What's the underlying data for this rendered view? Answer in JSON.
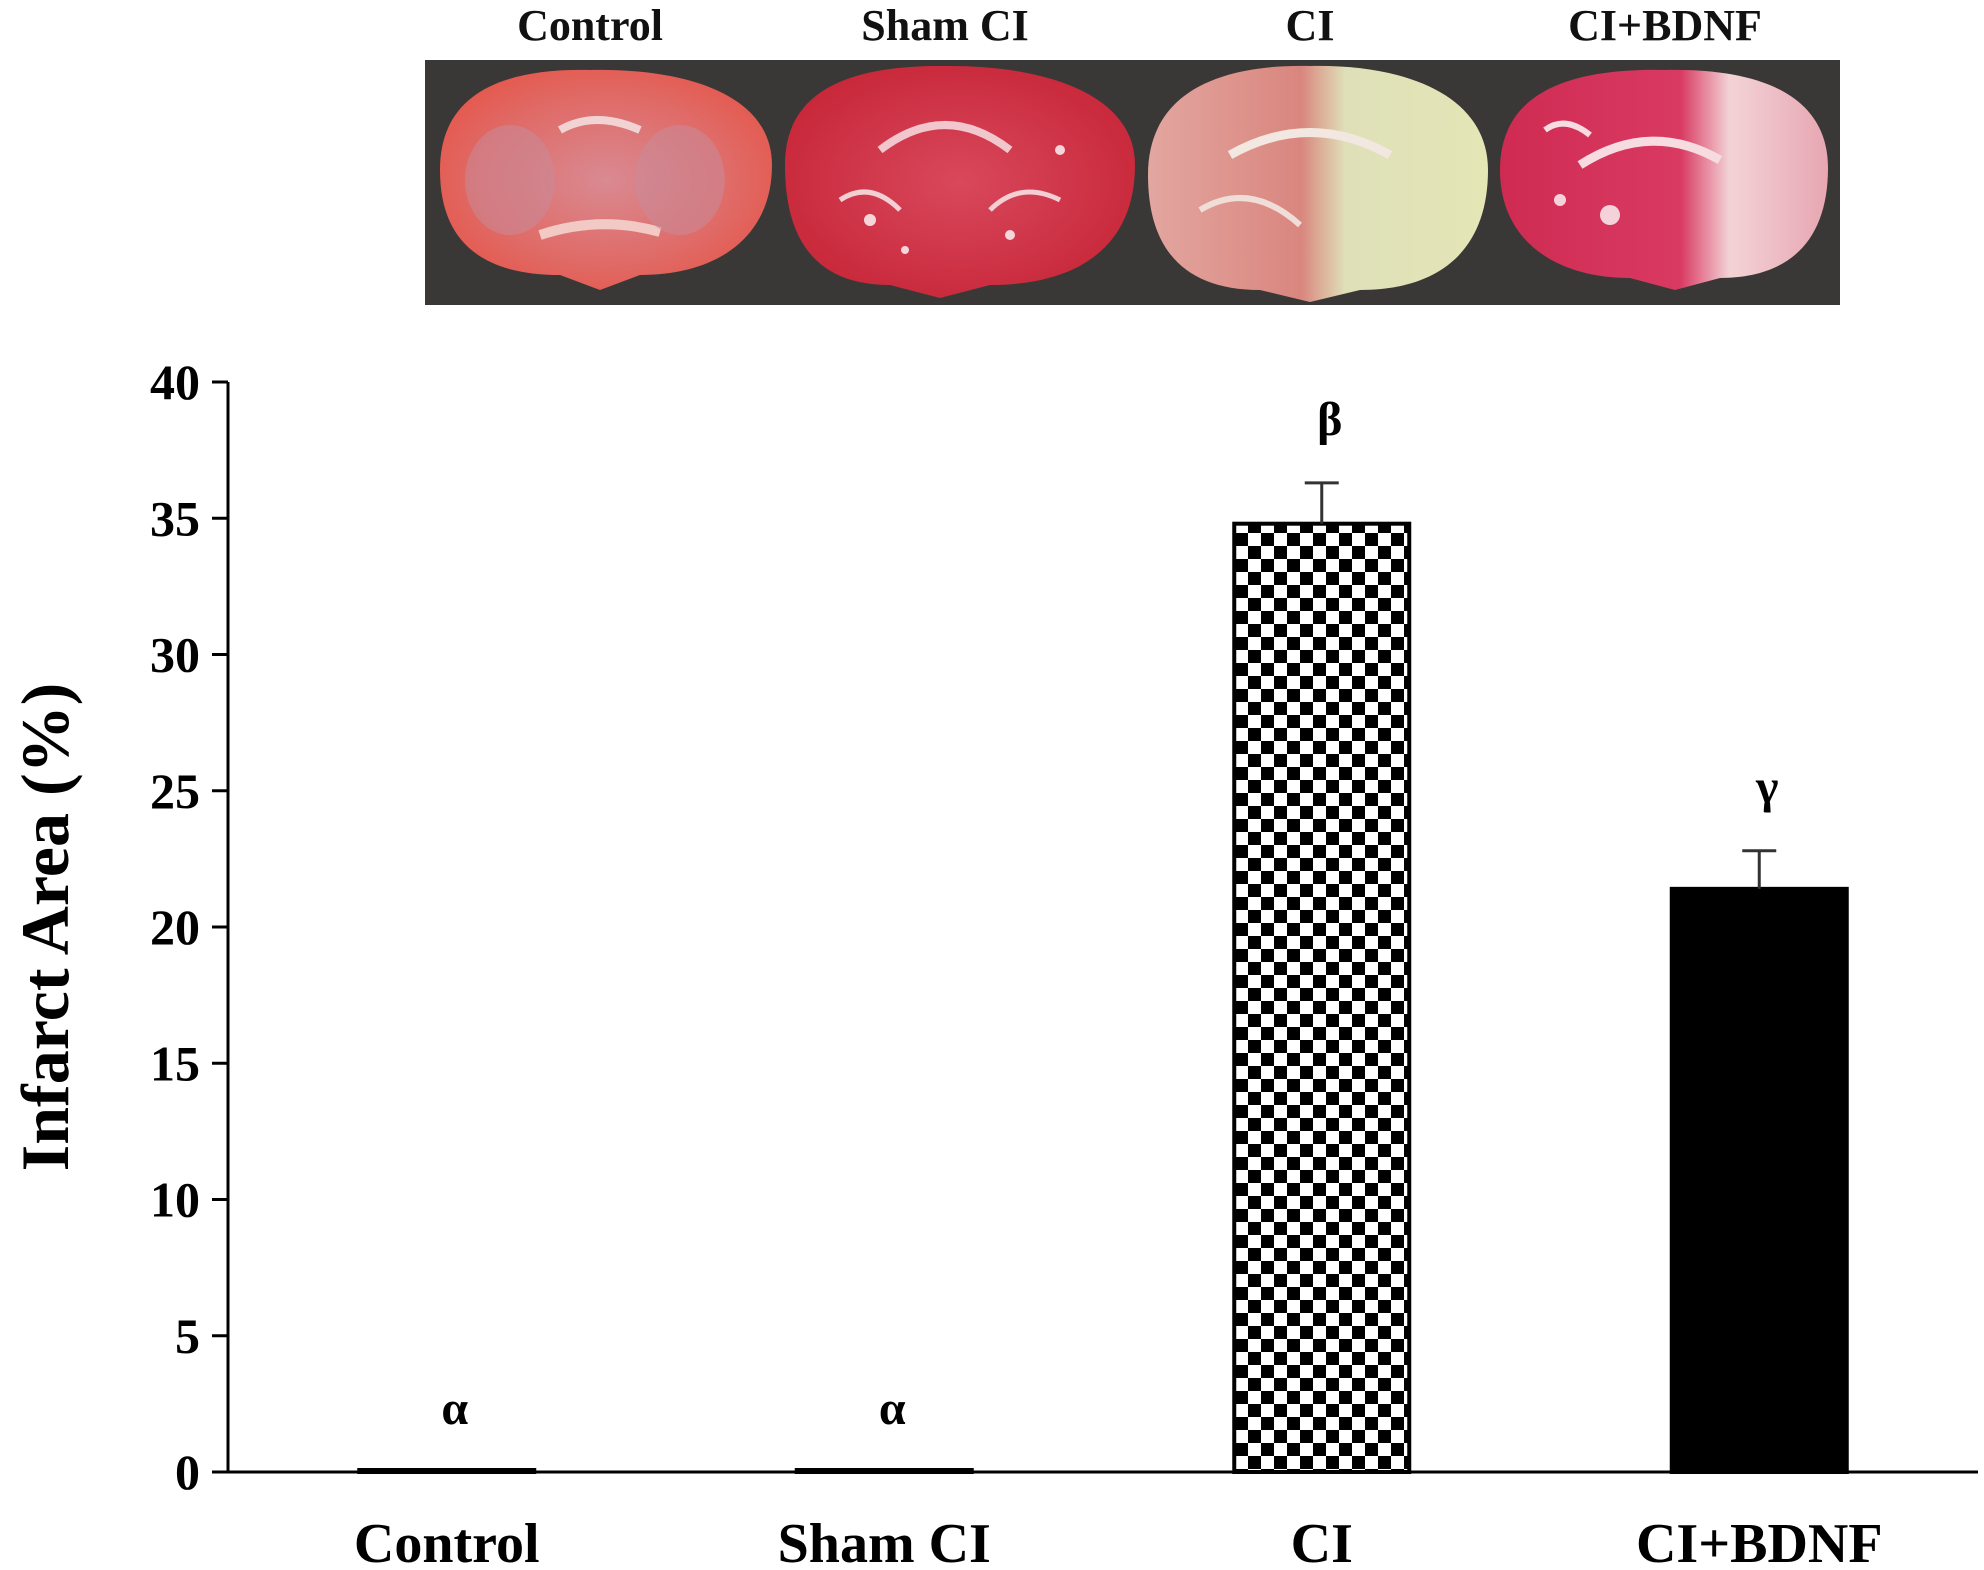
{
  "panel_labels": [
    "Control",
    "Sham CI",
    "CI",
    "CI+BDNF"
  ],
  "chart_data": {
    "type": "bar",
    "categories": [
      "Control",
      "Sham CI",
      "CI",
      "CI+BDNF"
    ],
    "values": [
      0,
      0,
      34.8,
      21.4
    ],
    "errors": [
      0,
      0,
      1.5,
      1.4
    ],
    "significance": [
      "α",
      "α",
      "β",
      "γ"
    ],
    "bar_styles": [
      "hollow",
      "hollow",
      "checkered",
      "solid"
    ],
    "title": "",
    "xlabel": "",
    "ylabel": "Infarct Area (%)",
    "ylim": [
      0,
      40
    ],
    "yticks": [
      0,
      5,
      10,
      15,
      20,
      25,
      30,
      35,
      40
    ],
    "grid": false,
    "legend": "none"
  }
}
